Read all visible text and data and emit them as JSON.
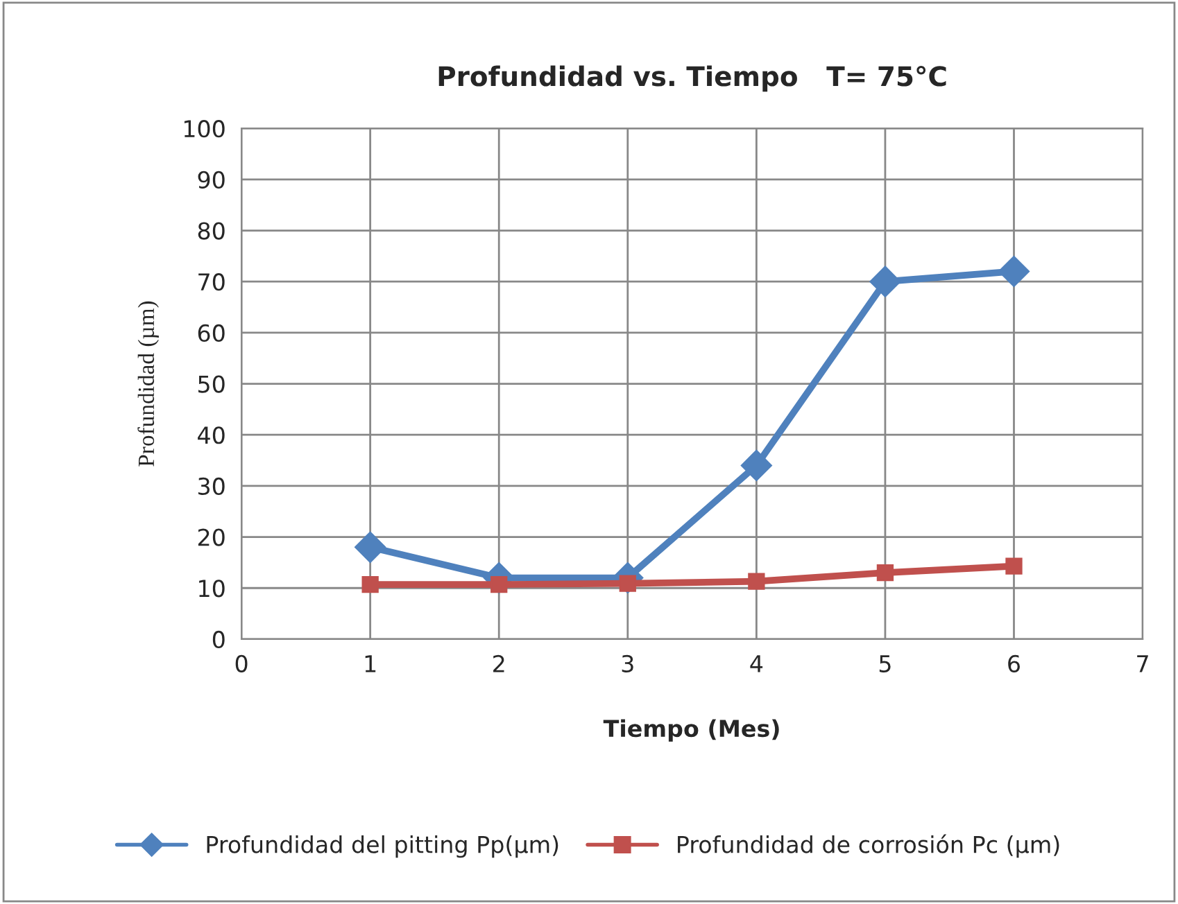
{
  "chart_data": {
    "type": "line",
    "title": "Profundidad vs. Tiempo   T= 75°C",
    "xlabel": "Tiempo (Mes)",
    "ylabel": "Profundidad (µm)",
    "x": [
      1,
      2,
      3,
      4,
      5,
      6
    ],
    "series": [
      {
        "name": "Profundidad del pitting Pp(µm)",
        "color": "#4f81bd",
        "marker": "diamond",
        "values": [
          18,
          12,
          12,
          34,
          70,
          72
        ]
      },
      {
        "name": "Profundidad de corrosión Pc (µm)",
        "color": "#c0504d",
        "marker": "square",
        "values": [
          10.7,
          10.7,
          10.9,
          11.3,
          13,
          14.3
        ]
      }
    ],
    "xlim": [
      0,
      7
    ],
    "xticks": [
      0,
      1,
      2,
      3,
      4,
      5,
      6,
      7
    ],
    "ylim": [
      0,
      100
    ],
    "yticks": [
      0,
      10,
      20,
      30,
      40,
      50,
      60,
      70,
      80,
      90,
      100
    ],
    "grid": true,
    "legend": "bottom",
    "line_style": "solid"
  }
}
